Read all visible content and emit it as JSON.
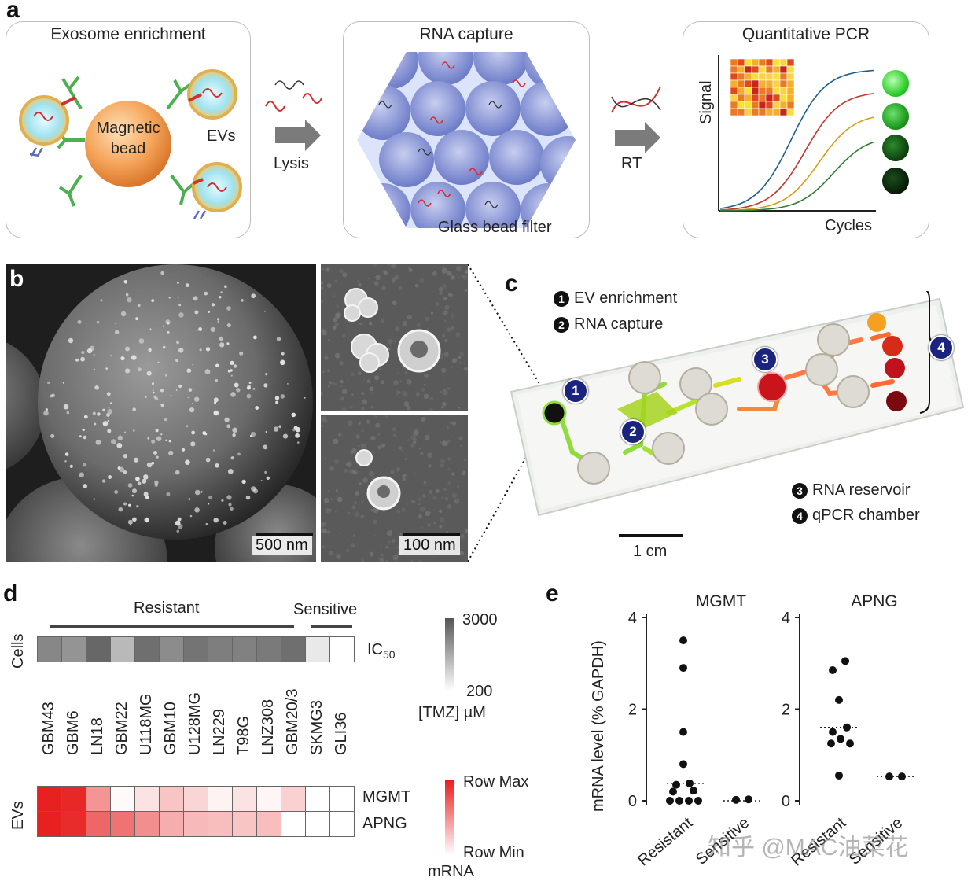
{
  "panels": {
    "a": "a",
    "b": "b",
    "c": "c",
    "d": "d",
    "e": "e"
  },
  "panel_a": {
    "box1": {
      "title": "Exosome enrichment",
      "bead_label_1": "Magnetic",
      "bead_label_2": "bead",
      "evs": "EVs"
    },
    "arrow1": "Lysis",
    "box2": {
      "title": "RNA capture",
      "filter": "Glass bead filter"
    },
    "arrow2": "RT",
    "box3": {
      "title": "Quantitative PCR",
      "ylabel": "Signal",
      "xlabel": "Cycles"
    },
    "colors": {
      "curve1": "#1f5f8b",
      "curve2": "#c0392b",
      "curve3": "#d4a017",
      "curve4": "#2e7d32"
    }
  },
  "panel_b": {
    "scale_main": "500 nm",
    "scale_inset": "100 nm"
  },
  "panel_c": {
    "steps": [
      {
        "n": "1",
        "label": "EV enrichment"
      },
      {
        "n": "2",
        "label": "RNA capture"
      },
      {
        "n": "3",
        "label": "RNA reservoir"
      },
      {
        "n": "4",
        "label": "qPCR chamber"
      }
    ],
    "scale": "1 cm"
  },
  "panel_d": {
    "resistant": "Resistant",
    "sensitive": "Sensitive",
    "cells_label": "Cells",
    "evs_label": "EVs",
    "ic50": "IC",
    "ic50_sub": "50",
    "cell_lines": [
      "GBM43",
      "GBM6",
      "LN18",
      "GBM22",
      "U118MG",
      "GBM10",
      "U128MG",
      "LN229",
      "T98G",
      "LNZ308",
      "GBM20/3",
      "SKMG3",
      "GLI36"
    ],
    "ic50_gray": [
      0.35,
      0.42,
      0.18,
      0.62,
      0.22,
      0.38,
      0.25,
      0.3,
      0.32,
      0.28,
      0.22,
      0.88,
      1.0
    ],
    "mgmt_label": "MGMT",
    "apng_label": "APNG",
    "mgmt_red": [
      0.95,
      0.92,
      0.45,
      0.02,
      0.12,
      0.25,
      0.18,
      0.05,
      0.12,
      0.04,
      0.2,
      0.0,
      0.0
    ],
    "apng_red": [
      0.95,
      0.9,
      0.65,
      0.6,
      0.48,
      0.35,
      0.3,
      0.28,
      0.25,
      0.28,
      0.0,
      0.0,
      0.0
    ],
    "gray_legend": {
      "max": "3000",
      "min": "200",
      "title": "[TMZ] µM"
    },
    "red_legend": {
      "max": "Row Max",
      "min": "Row Min",
      "title": "mRNA"
    },
    "colors": {
      "resistant": "#d32f2f",
      "sensitive": "#3f3fbf"
    }
  },
  "panel_e": {
    "ylabel": "mRNA level (% GAPDH)",
    "watermark": "知乎 @MAC油菜花",
    "chart_data": [
      {
        "type": "scatter",
        "title": "MGMT",
        "categories": [
          "Resistant",
          "Sensitive"
        ],
        "ylim": [
          0,
          4
        ],
        "yticks": [
          "0",
          "2",
          "4"
        ],
        "points": [
          {
            "cat": 0,
            "y": 3.5,
            "dx": -3
          },
          {
            "cat": 0,
            "y": 2.9,
            "dx": -3
          },
          {
            "cat": 0,
            "y": 1.5,
            "dx": -3
          },
          {
            "cat": 0,
            "y": 0.8,
            "dx": -3
          },
          {
            "cat": 0,
            "y": 0.35,
            "dx": -12
          },
          {
            "cat": 0,
            "y": 0.38,
            "dx": 5
          },
          {
            "cat": 0,
            "y": 0.2,
            "dx": -16
          },
          {
            "cat": 0,
            "y": 0.22,
            "dx": 10
          },
          {
            "cat": 0,
            "y": 0.0,
            "dx": -20
          },
          {
            "cat": 0,
            "y": 0.0,
            "dx": -8
          },
          {
            "cat": 0,
            "y": 0.0,
            "dx": 4
          },
          {
            "cat": 0,
            "y": 0.0,
            "dx": 16
          },
          {
            "cat": 1,
            "y": 0.02,
            "dx": -8
          },
          {
            "cat": 1,
            "y": 0.03,
            "dx": 8
          }
        ],
        "medians": [
          0.38,
          0.0
        ]
      },
      {
        "type": "scatter",
        "title": "APNG",
        "categories": [
          "Resistant",
          "Sensitive"
        ],
        "ylim": [
          0,
          4
        ],
        "yticks": [
          "0",
          "2",
          "4"
        ],
        "points": [
          {
            "cat": 0,
            "y": 3.05,
            "dx": 8
          },
          {
            "cat": 0,
            "y": 2.85,
            "dx": -8
          },
          {
            "cat": 0,
            "y": 2.2,
            "dx": 0
          },
          {
            "cat": 0,
            "y": 1.6,
            "dx": 10
          },
          {
            "cat": 0,
            "y": 1.5,
            "dx": -8
          },
          {
            "cat": 0,
            "y": 1.35,
            "dx": 2
          },
          {
            "cat": 0,
            "y": 1.25,
            "dx": -10
          },
          {
            "cat": 0,
            "y": 1.25,
            "dx": 14
          },
          {
            "cat": 0,
            "y": 0.55,
            "dx": 0
          },
          {
            "cat": 1,
            "y": 0.53,
            "dx": -8
          },
          {
            "cat": 1,
            "y": 0.53,
            "dx": 8
          }
        ],
        "medians": [
          1.6,
          0.53
        ]
      }
    ]
  }
}
